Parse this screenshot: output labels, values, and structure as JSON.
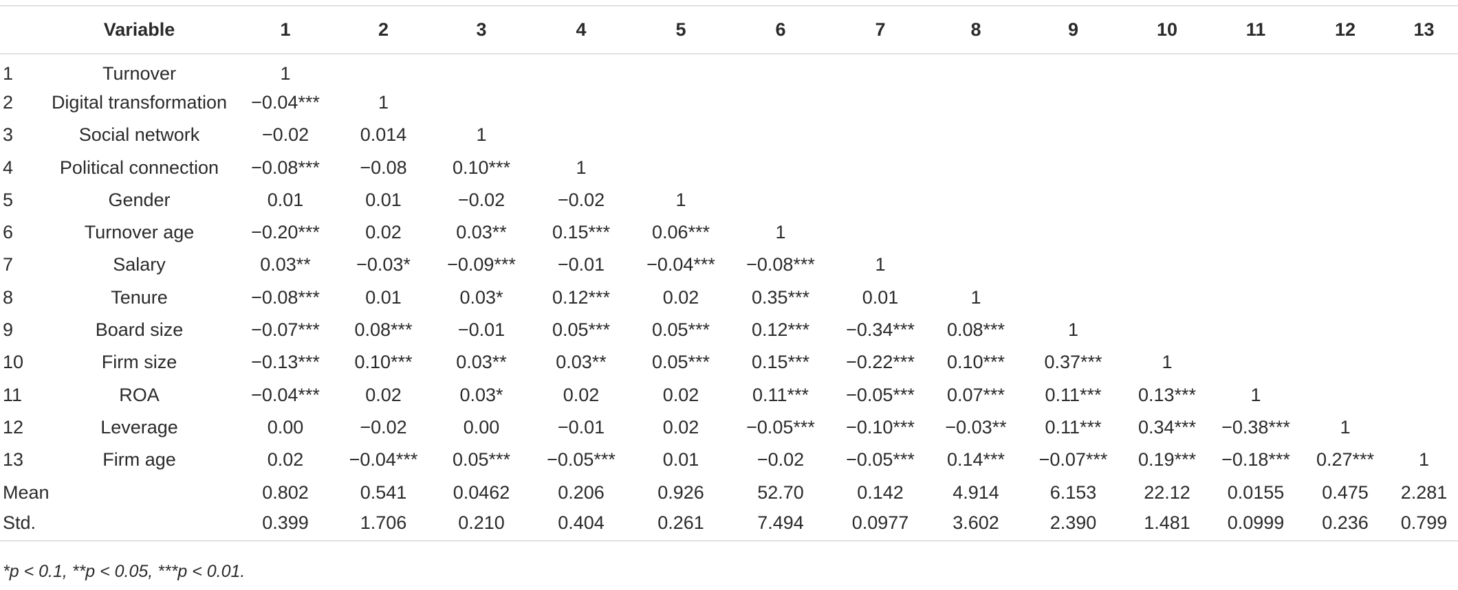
{
  "header": {
    "index": "",
    "variable": "Variable",
    "columns": [
      "1",
      "2",
      "3",
      "4",
      "5",
      "6",
      "7",
      "8",
      "9",
      "10",
      "11",
      "12",
      "13"
    ]
  },
  "rows": [
    {
      "index": "1",
      "name": "Turnover",
      "values": [
        "1",
        "",
        "",
        "",
        "",
        "",
        "",
        "",
        "",
        "",
        "",
        "",
        ""
      ]
    },
    {
      "index": "2",
      "name": "Digital transformation",
      "values": [
        "−0.04***",
        "1",
        "",
        "",
        "",
        "",
        "",
        "",
        "",
        "",
        "",
        "",
        ""
      ]
    },
    {
      "index": "3",
      "name": "Social network",
      "values": [
        "−0.02",
        "0.014",
        "1",
        "",
        "",
        "",
        "",
        "",
        "",
        "",
        "",
        "",
        ""
      ]
    },
    {
      "index": "4",
      "name": "Political connection",
      "values": [
        "−0.08***",
        "−0.08",
        "0.10***",
        "1",
        "",
        "",
        "",
        "",
        "",
        "",
        "",
        "",
        ""
      ]
    },
    {
      "index": "5",
      "name": "Gender",
      "values": [
        "0.01",
        "0.01",
        "−0.02",
        "−0.02",
        "1",
        "",
        "",
        "",
        "",
        "",
        "",
        "",
        ""
      ]
    },
    {
      "index": "6",
      "name": "Turnover age",
      "values": [
        "−0.20***",
        "0.02",
        "0.03**",
        "0.15***",
        "0.06***",
        "1",
        "",
        "",
        "",
        "",
        "",
        "",
        ""
      ]
    },
    {
      "index": "7",
      "name": "Salary",
      "values": [
        "0.03**",
        "−0.03*",
        "−0.09***",
        "−0.01",
        "−0.04***",
        "−0.08***",
        "1",
        "",
        "",
        "",
        "",
        "",
        ""
      ]
    },
    {
      "index": "8",
      "name": "Tenure",
      "values": [
        "−0.08***",
        "0.01",
        "0.03*",
        "0.12***",
        "0.02",
        "0.35***",
        "0.01",
        "1",
        "",
        "",
        "",
        "",
        ""
      ]
    },
    {
      "index": "9",
      "name": "Board size",
      "values": [
        "−0.07***",
        "0.08***",
        "−0.01",
        "0.05***",
        "0.05***",
        "0.12***",
        "−0.34***",
        "0.08***",
        "1",
        "",
        "",
        "",
        ""
      ]
    },
    {
      "index": "10",
      "name": "Firm size",
      "values": [
        "−0.13***",
        "0.10***",
        "0.03**",
        "0.03**",
        "0.05***",
        "0.15***",
        "−0.22***",
        "0.10***",
        "0.37***",
        "1",
        "",
        "",
        ""
      ]
    },
    {
      "index": "11",
      "name": "ROA",
      "values": [
        "−0.04***",
        "0.02",
        "0.03*",
        "0.02",
        "0.02",
        "0.11***",
        "−0.05***",
        "0.07***",
        "0.11***",
        "0.13***",
        "1",
        "",
        ""
      ]
    },
    {
      "index": "12",
      "name": "Leverage",
      "values": [
        "0.00",
        "−0.02",
        "0.00",
        "−0.01",
        "0.02",
        "−0.05***",
        "−0.10***",
        "−0.03**",
        "0.11***",
        "0.34***",
        "−0.38***",
        "1",
        ""
      ]
    },
    {
      "index": "13",
      "name": "Firm age",
      "values": [
        "0.02",
        "−0.04***",
        "0.05***",
        "−0.05***",
        "0.01",
        "−0.02",
        "−0.05***",
        "0.14***",
        "−0.07***",
        "0.19***",
        "−0.18***",
        "0.27***",
        "1"
      ]
    },
    {
      "index": "Mean",
      "name": "",
      "values": [
        "0.802",
        "0.541",
        "0.0462",
        "0.206",
        "0.926",
        "52.70",
        "0.142",
        "4.914",
        "6.153",
        "22.12",
        "0.0155",
        "0.475",
        "2.281"
      ]
    },
    {
      "index": "Std.",
      "name": "",
      "values": [
        "0.399",
        "1.706",
        "0.210",
        "0.404",
        "0.261",
        "7.494",
        "0.0977",
        "3.602",
        "2.390",
        "1.481",
        "0.0999",
        "0.236",
        "0.799"
      ]
    }
  ],
  "footnote": "*p < 0.1, **p < 0.05, ***p < 0.01."
}
